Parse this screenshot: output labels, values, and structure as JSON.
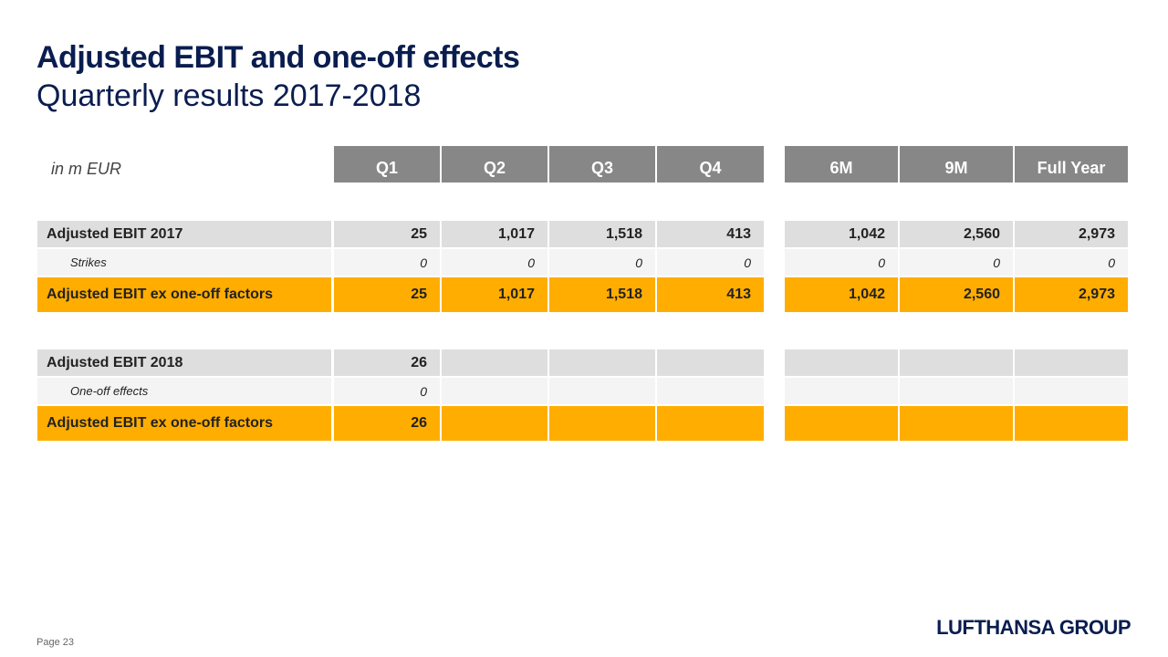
{
  "title": "Adjusted EBIT and one-off effects",
  "subtitle": "Quarterly results 2017-2018",
  "unit_label": "in m EUR",
  "columns": [
    "Q1",
    "Q2",
    "Q3",
    "Q4",
    "6M",
    "9M",
    "Full Year"
  ],
  "rows": [
    {
      "label": "Adjusted EBIT 2017",
      "values": [
        "25",
        "1,017",
        "1,518",
        "413",
        "1,042",
        "2,560",
        "2,973"
      ]
    },
    {
      "label": "Strikes",
      "values": [
        "0",
        "0",
        "0",
        "0",
        "0",
        "0",
        "0"
      ]
    },
    {
      "label": "Adjusted EBIT ex one-off factors",
      "values": [
        "25",
        "1,017",
        "1,518",
        "413",
        "1,042",
        "2,560",
        "2,973"
      ]
    },
    {
      "label": "Adjusted EBIT 2018",
      "values": [
        "26",
        "",
        "",
        "",
        "",
        "",
        ""
      ]
    },
    {
      "label": "One-off effects",
      "values": [
        "0",
        "",
        "",
        "",
        "",
        "",
        ""
      ]
    },
    {
      "label": "Adjusted EBIT ex one-off factors",
      "values": [
        "26",
        "",
        "",
        "",
        "",
        "",
        ""
      ]
    }
  ],
  "footer": {
    "page": "Page 23",
    "logo": "LUFTHANSA GROUP"
  },
  "colors": {
    "header": "#878787",
    "highlight": "#ffad00",
    "title": "#0a1d4f"
  }
}
